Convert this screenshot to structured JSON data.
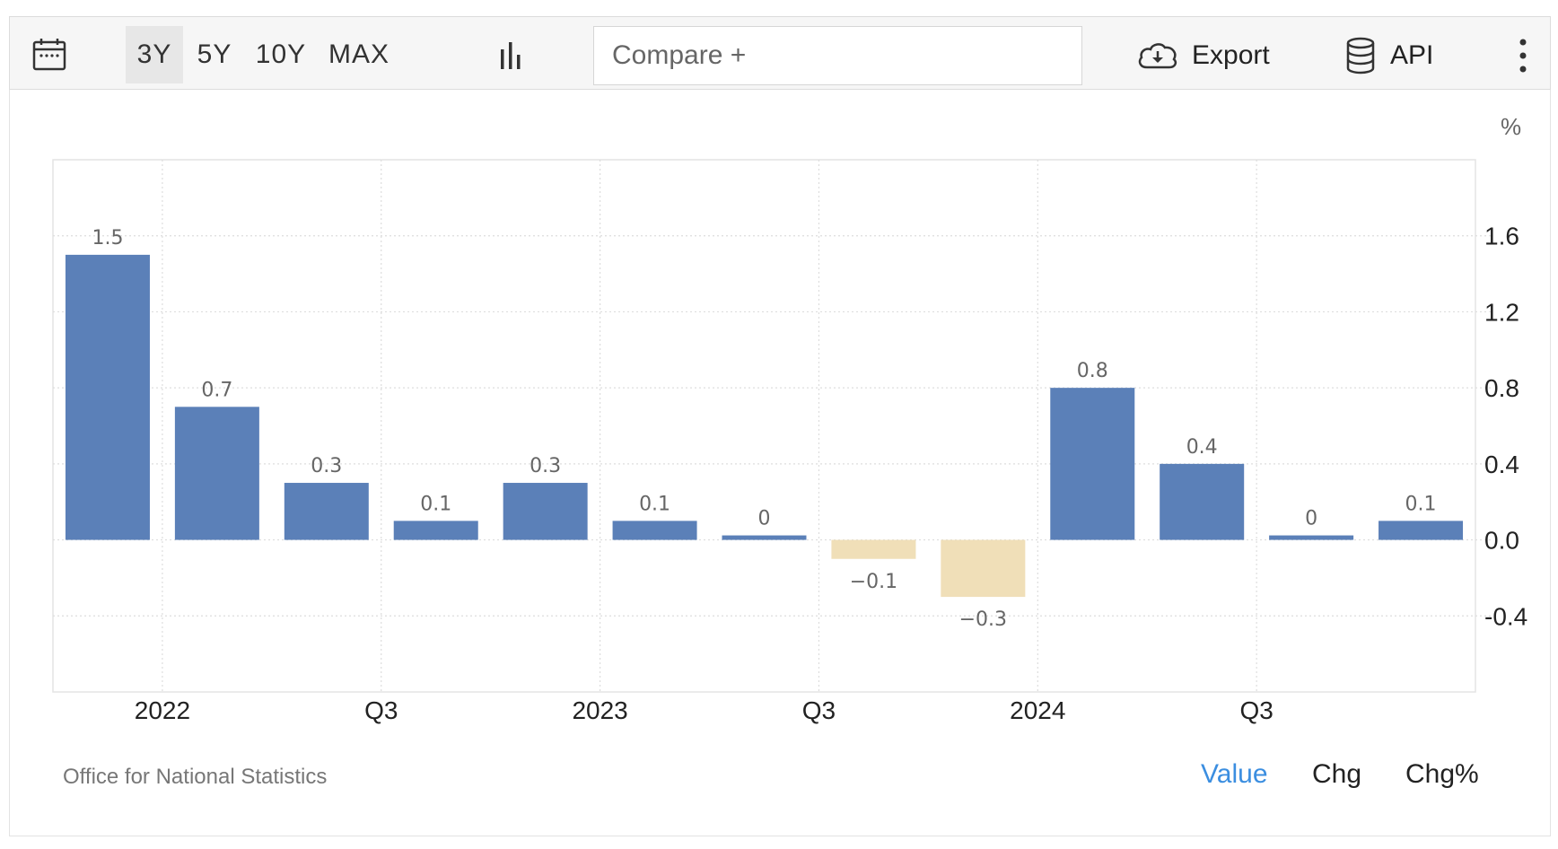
{
  "toolbar": {
    "ranges": [
      "3Y",
      "5Y",
      "10Y",
      "MAX"
    ],
    "active_range": "3Y",
    "compare_placeholder": "Compare +",
    "export_label": "Export",
    "api_label": "API"
  },
  "chart_data": {
    "type": "bar",
    "unit_label": "%",
    "categories": [
      "2021 Q4",
      "2022 Q1",
      "2022 Q2",
      "2022 Q3",
      "2022 Q4",
      "2023 Q1",
      "2023 Q2",
      "2023 Q3",
      "2023 Q4",
      "2024 Q1",
      "2024 Q2",
      "2024 Q3",
      "2024 Q4"
    ],
    "values": [
      1.5,
      0.7,
      0.3,
      0.1,
      0.3,
      0.1,
      0,
      -0.1,
      -0.3,
      0.8,
      0.4,
      0,
      0.1
    ],
    "data_labels": [
      "1.5",
      "0.7",
      "0.3",
      "0.1",
      "0.3",
      "0.1",
      "0",
      "−0.1",
      "−0.3",
      "0.8",
      "0.4",
      "0",
      "0.1"
    ],
    "x_tick_labels": [
      {
        "category": "2022 Q1",
        "label": "2022"
      },
      {
        "category": "2022 Q3",
        "label": "Q3"
      },
      {
        "category": "2023 Q1",
        "label": "2023"
      },
      {
        "category": "2023 Q3",
        "label": "Q3"
      },
      {
        "category": "2024 Q1",
        "label": "2024"
      },
      {
        "category": "2024 Q3",
        "label": "Q3"
      }
    ],
    "y_ticks": [
      1.6,
      1.2,
      0.8,
      0.4,
      0.0,
      -0.4
    ],
    "y_tick_labels": [
      "1.6",
      "1.2",
      "0.8",
      "0.4",
      "0.0",
      "-0.4"
    ],
    "ylim": [
      -0.8,
      2.0
    ],
    "positive_color": "#5b80b8",
    "negative_color": "#f0dfb8",
    "grid": true
  },
  "footer": {
    "source": "Office for National Statistics",
    "view_tabs": [
      "Value",
      "Chg",
      "Chg%"
    ],
    "active_tab": "Value"
  }
}
